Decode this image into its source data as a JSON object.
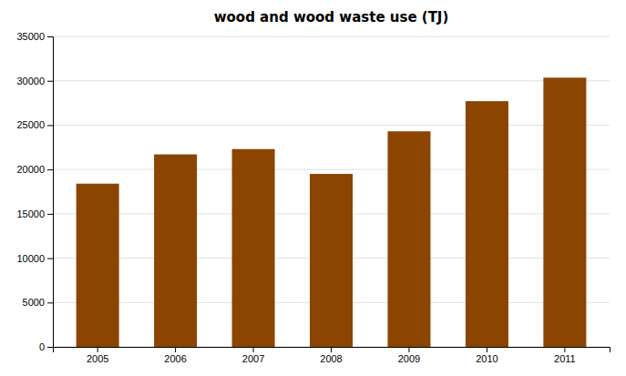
{
  "chart_data": {
    "type": "bar",
    "title": "wood and wood waste use (TJ)",
    "categories": [
      "2005",
      "2006",
      "2007",
      "2008",
      "2009",
      "2010",
      "2011"
    ],
    "values": [
      18400,
      21700,
      22300,
      19500,
      24300,
      27700,
      30350
    ],
    "color": "#8B4500",
    "ylim": [
      0,
      35000
    ],
    "yticks": [
      0,
      5000,
      10000,
      15000,
      20000,
      25000,
      30000,
      35000
    ],
    "grid": true
  }
}
